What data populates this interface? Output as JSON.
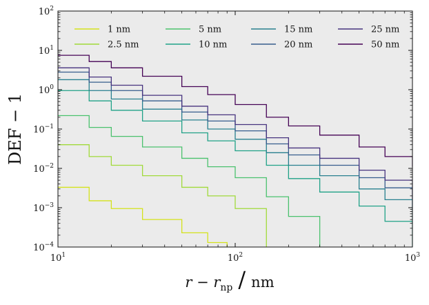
{
  "chart_data": {
    "type": "line",
    "title": "",
    "xlabel": "r − r_np / nm",
    "xlabel_parts": {
      "main": "r − r",
      "sub": "np",
      "slash": "/",
      "unit": "nm"
    },
    "ylabel": "DEF − 1",
    "xscale": "log",
    "yscale": "log",
    "xlim": [
      10,
      1000
    ],
    "ylim": [
      0.0001,
      100
    ],
    "x_ticks": [
      {
        "value": 10,
        "base": "10",
        "exp": "1"
      },
      {
        "value": 100,
        "base": "10",
        "exp": "2"
      },
      {
        "value": 1000,
        "base": "10",
        "exp": "3"
      }
    ],
    "y_ticks": [
      {
        "value": 100,
        "base": "10",
        "exp": "2"
      },
      {
        "value": 10,
        "base": "10",
        "exp": "1"
      },
      {
        "value": 1,
        "base": "10",
        "exp": "0"
      },
      {
        "value": 0.1,
        "base": "10",
        "exp": "-1"
      },
      {
        "value": 0.01,
        "base": "10",
        "exp": "-2"
      },
      {
        "value": 0.001,
        "base": "10",
        "exp": "-3"
      },
      {
        "value": 0.0001,
        "base": "10",
        "exp": "-4"
      }
    ],
    "background_color": "#ebebeb",
    "grid": false,
    "legend_position": "top",
    "legend_columns": 4,
    "step_style": "stepwise",
    "series": [
      {
        "name": "1 nm",
        "color": "#d4e21a",
        "points": [
          [
            10,
            0.0033
          ],
          [
            15,
            0.0015
          ],
          [
            20,
            0.00095
          ],
          [
            30,
            0.0005
          ],
          [
            50,
            0.00023
          ],
          [
            70,
            0.00013
          ],
          [
            90,
            0.0001
          ]
        ]
      },
      {
        "name": "2.5 nm",
        "color": "#a0da39",
        "points": [
          [
            10,
            0.04
          ],
          [
            15,
            0.02
          ],
          [
            20,
            0.012
          ],
          [
            30,
            0.0065
          ],
          [
            50,
            0.0033
          ],
          [
            70,
            0.002
          ],
          [
            100,
            0.00095
          ],
          [
            150,
            0.0001
          ]
        ]
      },
      {
        "name": "5 nm",
        "color": "#4ac16d",
        "points": [
          [
            10,
            0.22
          ],
          [
            15,
            0.11
          ],
          [
            20,
            0.065
          ],
          [
            30,
            0.035
          ],
          [
            50,
            0.018
          ],
          [
            70,
            0.011
          ],
          [
            100,
            0.0058
          ],
          [
            150,
            0.0019
          ],
          [
            200,
            0.0006
          ],
          [
            300,
            0.0001
          ]
        ]
      },
      {
        "name": "10 nm",
        "color": "#1fa187",
        "points": [
          [
            10,
            0.95
          ],
          [
            15,
            0.52
          ],
          [
            20,
            0.3
          ],
          [
            30,
            0.16
          ],
          [
            50,
            0.08
          ],
          [
            70,
            0.05
          ],
          [
            100,
            0.028
          ],
          [
            150,
            0.012
          ],
          [
            200,
            0.0055
          ],
          [
            300,
            0.0025
          ],
          [
            500,
            0.0011
          ],
          [
            700,
            0.00045
          ],
          [
            1000,
            0.0001
          ]
        ]
      },
      {
        "name": "15 nm",
        "color": "#277f8e",
        "points": [
          [
            10,
            1.8
          ],
          [
            15,
            0.95
          ],
          [
            20,
            0.58
          ],
          [
            30,
            0.32
          ],
          [
            50,
            0.17
          ],
          [
            70,
            0.1
          ],
          [
            100,
            0.055
          ],
          [
            150,
            0.025
          ],
          [
            200,
            0.012
          ],
          [
            300,
            0.0065
          ],
          [
            500,
            0.003
          ],
          [
            700,
            0.0016
          ],
          [
            1000,
            0.0004
          ]
        ]
      },
      {
        "name": "20 nm",
        "color": "#365c8d",
        "points": [
          [
            10,
            2.8
          ],
          [
            15,
            1.55
          ],
          [
            20,
            0.95
          ],
          [
            30,
            0.52
          ],
          [
            50,
            0.27
          ],
          [
            70,
            0.16
          ],
          [
            100,
            0.09
          ],
          [
            150,
            0.042
          ],
          [
            200,
            0.022
          ],
          [
            300,
            0.012
          ],
          [
            500,
            0.0058
          ],
          [
            700,
            0.0032
          ],
          [
            1000,
            0.0009
          ]
        ]
      },
      {
        "name": "25 nm",
        "color": "#46327e",
        "points": [
          [
            10,
            3.6
          ],
          [
            15,
            2.1
          ],
          [
            20,
            1.3
          ],
          [
            30,
            0.72
          ],
          [
            50,
            0.38
          ],
          [
            70,
            0.23
          ],
          [
            100,
            0.13
          ],
          [
            150,
            0.06
          ],
          [
            200,
            0.033
          ],
          [
            300,
            0.018
          ],
          [
            500,
            0.009
          ],
          [
            700,
            0.005
          ],
          [
            1000,
            0.0016
          ]
        ]
      },
      {
        "name": "50 nm",
        "color": "#440154",
        "points": [
          [
            10,
            7.5
          ],
          [
            15,
            5.2
          ],
          [
            20,
            3.6
          ],
          [
            30,
            2.2
          ],
          [
            50,
            1.2
          ],
          [
            70,
            0.75
          ],
          [
            100,
            0.42
          ],
          [
            150,
            0.2
          ],
          [
            200,
            0.12
          ],
          [
            300,
            0.07
          ],
          [
            500,
            0.035
          ],
          [
            700,
            0.02
          ],
          [
            1000,
            0.011
          ]
        ]
      }
    ]
  }
}
